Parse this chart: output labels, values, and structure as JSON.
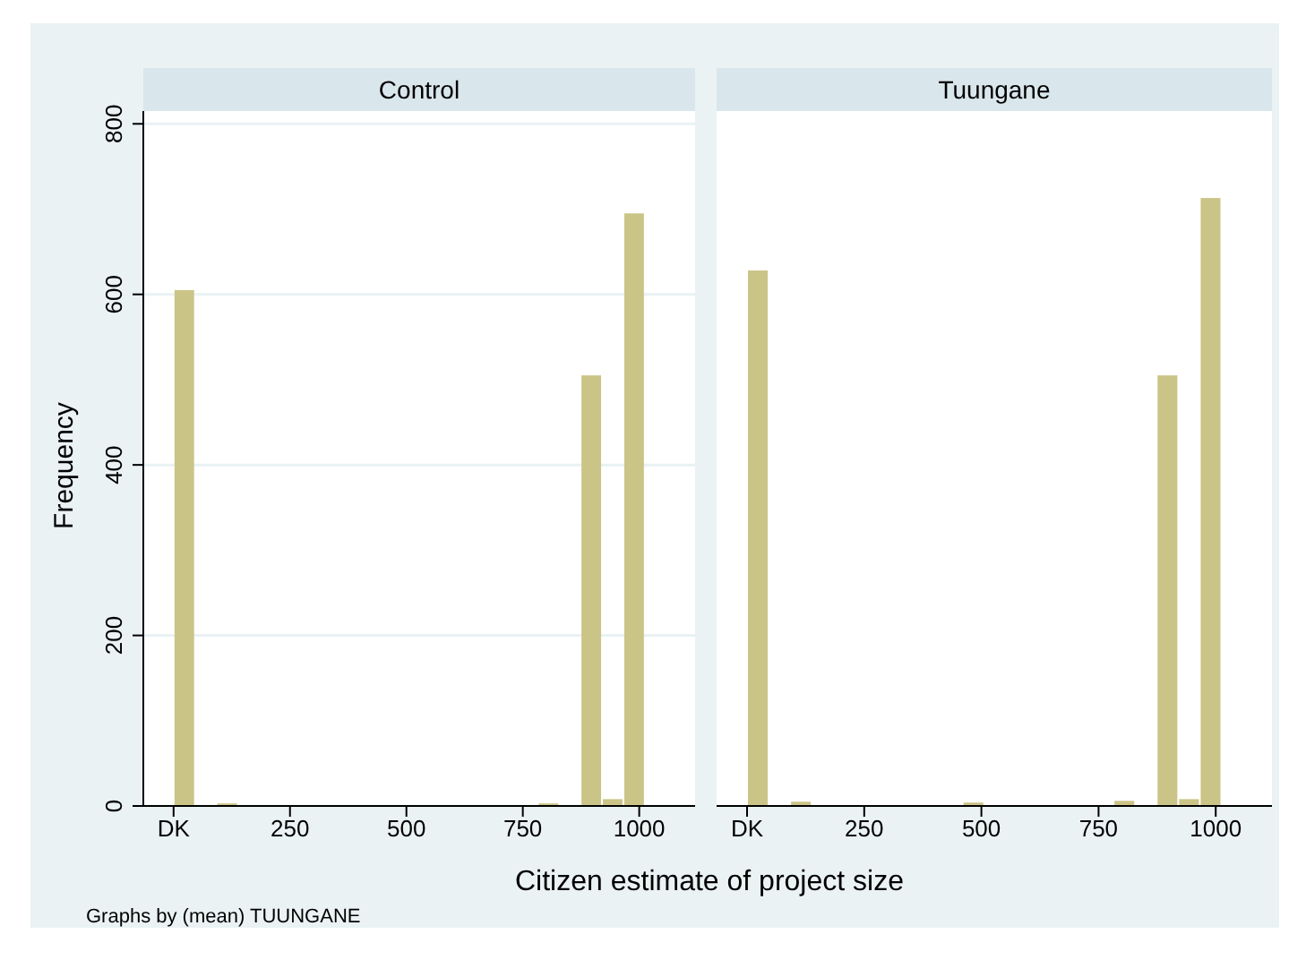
{
  "chart_data": [
    {
      "type": "histogram",
      "title": "Control",
      "xlabel": "Citizen estimate of project size",
      "ylabel": "Frequency",
      "annotations": [
        "Graphs by (mean) TUUNGANE"
      ],
      "bins": [
        0,
        46,
        92,
        138,
        184,
        230,
        276,
        322,
        368,
        414,
        460,
        506,
        552,
        598,
        644,
        690,
        736,
        782,
        828,
        874,
        920,
        966,
        1012,
        1058,
        1104
      ],
      "values": [
        605,
        0,
        3,
        0,
        1,
        0,
        1,
        0,
        0,
        0,
        1,
        0,
        1,
        0,
        1,
        0,
        0,
        3,
        0,
        505,
        8,
        695,
        0,
        1
      ],
      "color": "#cbc487",
      "xlim": [
        -65,
        1120
      ],
      "xticks": [
        {
          "value": 0,
          "label": "DK"
        },
        250,
        500,
        750,
        1000
      ],
      "ylim": [
        0,
        815
      ],
      "yticks": [
        0,
        200,
        400,
        600,
        800
      ],
      "grid": "y"
    },
    {
      "type": "histogram",
      "title": "Tuungane",
      "bins": [
        0,
        46,
        92,
        138,
        184,
        230,
        276,
        322,
        368,
        414,
        460,
        506,
        552,
        598,
        644,
        690,
        736,
        782,
        828,
        874,
        920,
        966,
        1012,
        1058,
        1104
      ],
      "values": [
        628,
        0,
        5,
        0,
        0,
        1,
        1,
        0,
        0,
        0,
        4,
        0,
        0,
        1,
        0,
        0,
        0,
        6,
        0,
        505,
        8,
        713,
        0,
        0
      ],
      "color": "#cbc487",
      "xlim": [
        -65,
        1120
      ],
      "xticks": [
        {
          "value": 0,
          "label": "DK"
        },
        250,
        500,
        750,
        1000
      ],
      "ylim": [
        0,
        815
      ],
      "yticks": [
        0,
        200,
        400,
        600,
        800
      ],
      "grid": "y",
      "tick_labels": "x"
    }
  ]
}
